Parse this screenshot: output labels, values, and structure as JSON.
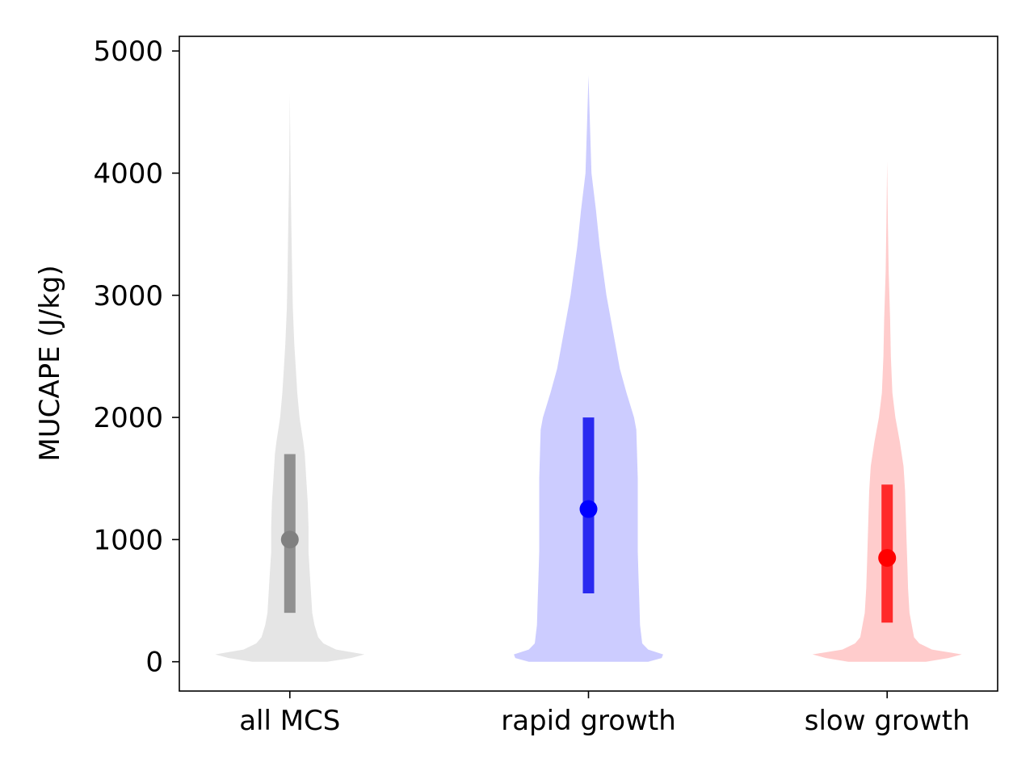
{
  "chart_data": {
    "type": "violin",
    "ylabel": "MUCAPE (J/kg)",
    "xlabel": "",
    "ylim": [
      -240,
      5120
    ],
    "yticks": [
      0,
      1000,
      2000,
      3000,
      4000,
      5000
    ],
    "ytick_labels": [
      "0",
      "1000",
      "2000",
      "3000",
      "4000",
      "5000"
    ],
    "categories": [
      "all MCS",
      "rapid growth",
      "slow growth"
    ],
    "grid": false,
    "series": [
      {
        "category": "all MCS",
        "fill_color": "#e5e5e5",
        "marker_color": "#808080",
        "bar_color": "#909090",
        "median": 1000,
        "q1": 400,
        "q3": 1700,
        "max": 4650,
        "density_profile": [
          [
            0,
            0.5
          ],
          [
            30,
            0.82
          ],
          [
            60,
            1.0
          ],
          [
            100,
            0.62
          ],
          [
            150,
            0.45
          ],
          [
            200,
            0.38
          ],
          [
            300,
            0.33
          ],
          [
            400,
            0.3
          ],
          [
            500,
            0.29
          ],
          [
            700,
            0.27
          ],
          [
            900,
            0.25
          ],
          [
            1100,
            0.25
          ],
          [
            1300,
            0.24
          ],
          [
            1500,
            0.22
          ],
          [
            1700,
            0.2
          ],
          [
            1800,
            0.18
          ],
          [
            2000,
            0.13
          ],
          [
            2200,
            0.1
          ],
          [
            2400,
            0.08
          ],
          [
            2600,
            0.06
          ],
          [
            2900,
            0.04
          ],
          [
            3200,
            0.03
          ],
          [
            3600,
            0.02
          ],
          [
            4000,
            0.01
          ],
          [
            4650,
            0.0
          ]
        ]
      },
      {
        "category": "rapid growth",
        "fill_color": "#ccccff",
        "marker_color": "#0000ff",
        "bar_color": "#2a2af0",
        "median": 1250,
        "q1": 560,
        "q3": 2000,
        "max": 4800,
        "density_profile": [
          [
            0,
            0.8
          ],
          [
            30,
            0.98
          ],
          [
            60,
            1.0
          ],
          [
            100,
            0.8
          ],
          [
            150,
            0.72
          ],
          [
            200,
            0.71
          ],
          [
            300,
            0.69
          ],
          [
            500,
            0.68
          ],
          [
            700,
            0.67
          ],
          [
            900,
            0.66
          ],
          [
            1100,
            0.66
          ],
          [
            1300,
            0.66
          ],
          [
            1500,
            0.66
          ],
          [
            1700,
            0.65
          ],
          [
            1900,
            0.64
          ],
          [
            2000,
            0.61
          ],
          [
            2200,
            0.51
          ],
          [
            2400,
            0.42
          ],
          [
            2700,
            0.33
          ],
          [
            3000,
            0.24
          ],
          [
            3400,
            0.15
          ],
          [
            3700,
            0.1
          ],
          [
            4000,
            0.04
          ],
          [
            4400,
            0.02
          ],
          [
            4800,
            0.0
          ]
        ]
      },
      {
        "category": "slow growth",
        "fill_color": "#ffcccc",
        "marker_color": "#ff0000",
        "bar_color": "#ff2a2a",
        "median": 850,
        "q1": 320,
        "q3": 1450,
        "max": 4100,
        "density_profile": [
          [
            0,
            0.52
          ],
          [
            30,
            0.82
          ],
          [
            60,
            1.0
          ],
          [
            100,
            0.6
          ],
          [
            150,
            0.43
          ],
          [
            200,
            0.36
          ],
          [
            300,
            0.33
          ],
          [
            400,
            0.3
          ],
          [
            600,
            0.28
          ],
          [
            800,
            0.27
          ],
          [
            1000,
            0.26
          ],
          [
            1200,
            0.25
          ],
          [
            1400,
            0.24
          ],
          [
            1600,
            0.22
          ],
          [
            1800,
            0.17
          ],
          [
            2000,
            0.11
          ],
          [
            2200,
            0.07
          ],
          [
            2500,
            0.05
          ],
          [
            2800,
            0.04
          ],
          [
            3200,
            0.02
          ],
          [
            3600,
            0.01
          ],
          [
            4100,
            0.0
          ]
        ]
      }
    ]
  }
}
